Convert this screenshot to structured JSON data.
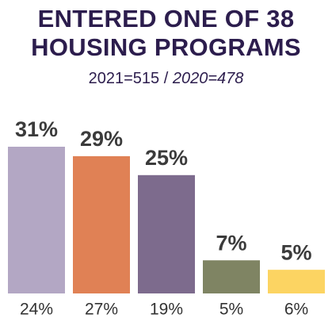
{
  "chart_data": {
    "type": "bar",
    "title": "ENTERED ONE OF 38 HOUSING PROGRAMS",
    "subtitle": [
      "2021=515 /",
      "2020=478"
    ],
    "categories": [
      "24%",
      "27%",
      "19%",
      "5%",
      "6%"
    ],
    "values": [
      31,
      29,
      25,
      7,
      5
    ],
    "value_labels": [
      "31%",
      "29%",
      "25%",
      "7%",
      "5%"
    ],
    "colors": [
      "#b3a7c4",
      "#e08155",
      "#7d6b8d",
      "#7f8463",
      "#fcd462"
    ]
  }
}
